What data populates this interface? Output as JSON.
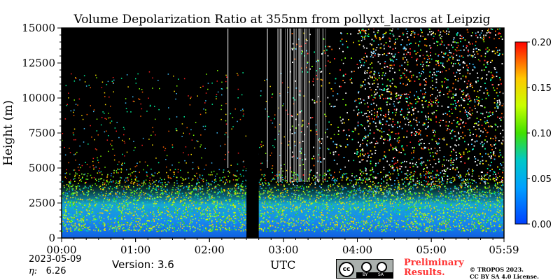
{
  "chart_data": {
    "type": "heatmap",
    "title": "Volume Depolarization Ratio at 355nm from pollyxt_lacros at Leipzig",
    "xlabel": "UTC",
    "ylabel": "Height (m)",
    "x_ticks": [
      "00:00",
      "01:00",
      "02:00",
      "03:00",
      "04:00",
      "05:00",
      "05:59"
    ],
    "x_tick_minutes": [
      0,
      60,
      120,
      180,
      240,
      300,
      359
    ],
    "x_range_minutes": [
      0,
      359
    ],
    "y_ticks": [
      "0",
      "2500",
      "5000",
      "7500",
      "10000",
      "12500",
      "15000"
    ],
    "y_tick_values": [
      0,
      2500,
      5000,
      7500,
      10000,
      12500,
      15000
    ],
    "ylim": [
      0,
      15000
    ],
    "colorbar": {
      "min": 0.0,
      "max": 0.2,
      "ticks": [
        "0.00",
        "0.05",
        "0.10",
        "0.15",
        "0.20"
      ],
      "tick_values": [
        0.0,
        0.05,
        0.1,
        0.15,
        0.2
      ],
      "colormap": "jet"
    },
    "features": {
      "no_data_gap_minutes": [
        150,
        160
      ],
      "boundary_layer_top_m": 2500,
      "noise_onset_minutes": 185,
      "dense_noise_minutes": [
        240,
        359
      ]
    }
  },
  "meta": {
    "date": "2023-05-09",
    "eta_label": "η:",
    "eta_value": "6.26",
    "version": "Version: 3.6",
    "preliminary": [
      "Preliminary",
      "Results."
    ],
    "copyright": [
      "© TROPOS 2023.",
      "CC BY SA 4.0 License."
    ],
    "license_badge": {
      "cc": "cc",
      "by": "BY",
      "sa": "SA"
    }
  }
}
